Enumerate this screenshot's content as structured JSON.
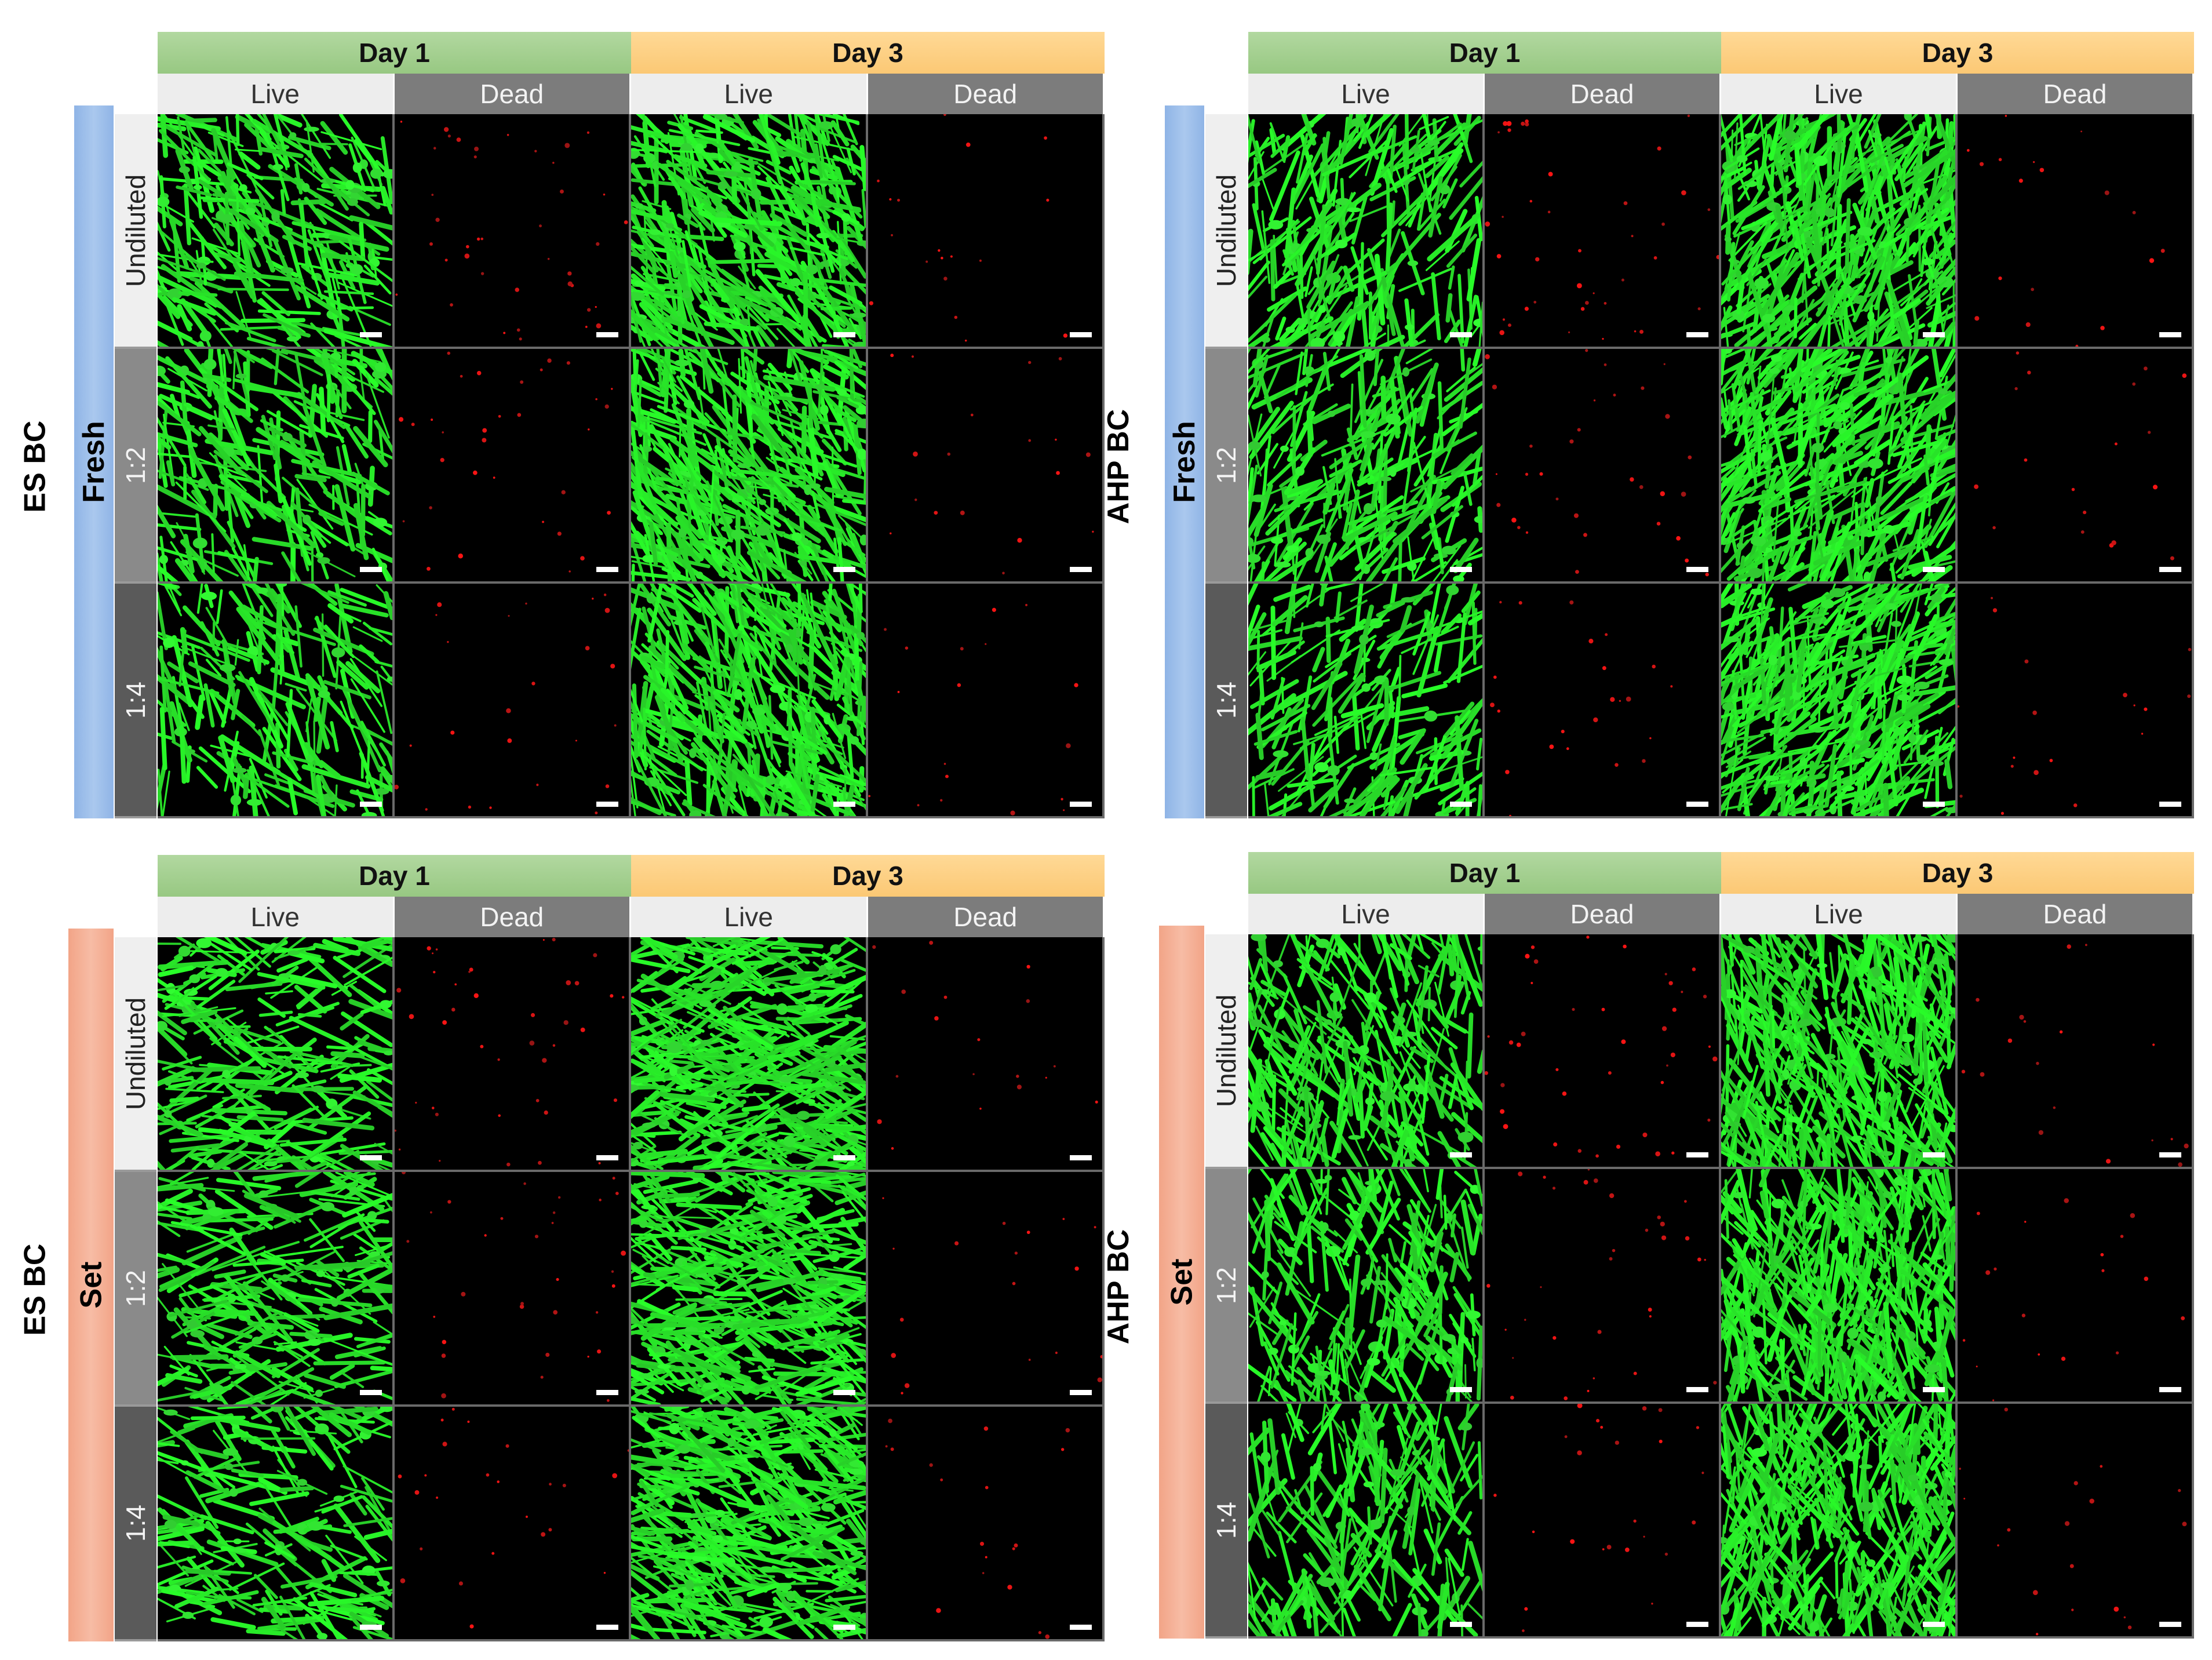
{
  "panels": [
    {
      "material": "ES BC",
      "condition": "Fresh",
      "condition_color": "#a9c6ee",
      "days": [
        "Day 1",
        "Day 3"
      ],
      "stains": [
        "Live",
        "Dead",
        "Live",
        "Dead"
      ],
      "dilutions": [
        "Undiluted",
        "1:2",
        "1:4"
      ]
    },
    {
      "material": "AHP BC",
      "condition": "Fresh",
      "condition_color": "#a9c6ee",
      "days": [
        "Day 1",
        "Day 3"
      ],
      "stains": [
        "Live",
        "Dead",
        "Live",
        "Dead"
      ],
      "dilutions": [
        "Undiluted",
        "1:2",
        "1:4"
      ]
    },
    {
      "material": "ES BC",
      "condition": "Set",
      "condition_color": "#f4b29a",
      "days": [
        "Day 1",
        "Day 3"
      ],
      "stains": [
        "Live",
        "Dead",
        "Live",
        "Dead"
      ],
      "dilutions": [
        "Undiluted",
        "1:2",
        "1:4"
      ]
    },
    {
      "material": "AHP BC",
      "condition": "Set",
      "condition_color": "#f4b29a",
      "days": [
        "Day 1",
        "Day 3"
      ],
      "stains": [
        "Live",
        "Dead",
        "Live",
        "Dead"
      ],
      "dilutions": [
        "Undiluted",
        "1:2",
        "1:4"
      ]
    }
  ],
  "colors": {
    "live_stain": "#3cf03c",
    "dead_stain": "#e01818",
    "day1_header": "#a6d192",
    "day3_header": "#ffd184",
    "background": "#000000"
  }
}
